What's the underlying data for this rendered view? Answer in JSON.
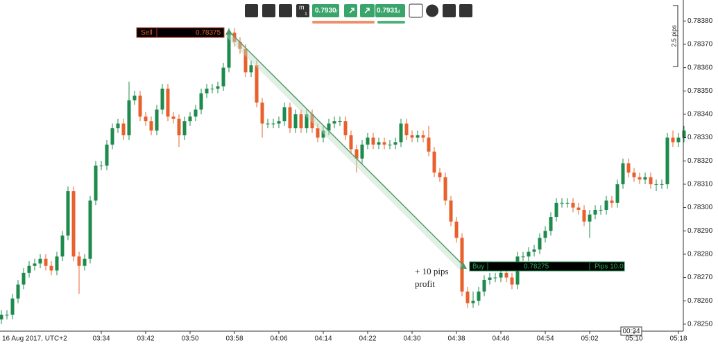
{
  "chart_data": {
    "type": "candlestick",
    "date_label": "16 Aug 2017, UTC+2",
    "categories": [
      null,
      null,
      null,
      null,
      null,
      null,
      null,
      null,
      null,
      null,
      null,
      null,
      null,
      null,
      null,
      null,
      null,
      null,
      "03:34",
      null,
      null,
      null,
      null,
      null,
      null,
      null,
      "03:42",
      null,
      null,
      null,
      null,
      null,
      null,
      null,
      "03:50",
      null,
      null,
      null,
      null,
      null,
      null,
      null,
      "03:58",
      null,
      null,
      null,
      null,
      null,
      null,
      null,
      "04:06",
      null,
      null,
      null,
      null,
      null,
      null,
      null,
      "04:14",
      null,
      null,
      null,
      null,
      null,
      null,
      null,
      "04:22",
      null,
      null,
      null,
      null,
      null,
      null,
      null,
      "04:30",
      null,
      null,
      null,
      null,
      null,
      null,
      null,
      "04:38",
      null,
      null,
      null,
      null,
      null,
      null,
      null,
      "04:46",
      null,
      null,
      null,
      null,
      null,
      null,
      null,
      "04:54",
      null,
      null,
      null,
      null,
      null,
      null,
      null,
      "05:02",
      null,
      null,
      null,
      null,
      null,
      null,
      null,
      "05:10",
      null,
      null,
      null,
      null,
      null,
      null,
      null,
      "05:18",
      null
    ],
    "open": [
      0.78252,
      0.78254,
      0.78254,
      0.78261,
      0.78267,
      0.78272,
      0.78275,
      0.78276,
      0.78278,
      0.78275,
      0.78273,
      0.78279,
      0.78288,
      0.78307,
      0.78279,
      0.78275,
      0.78278,
      0.78303,
      0.78318,
      0.78318,
      0.78327,
      0.78334,
      0.78336,
      0.78331,
      0.78346,
      0.78348,
      0.78339,
      0.78337,
      0.78333,
      0.78342,
      0.78351,
      0.78339,
      0.78338,
      0.78331,
      0.78337,
      0.78339,
      0.78342,
      0.78349,
      0.78351,
      0.78351,
      0.78352,
      0.7836,
      0.78375,
      0.78371,
      0.78368,
      0.78358,
      0.78361,
      0.78345,
      0.78336,
      0.78336,
      0.78336,
      0.78337,
      0.78343,
      0.78334,
      0.7834,
      0.78334,
      0.7834,
      0.78334,
      0.7833,
      0.78333,
      0.78336,
      0.78337,
      0.78337,
      0.78331,
      0.78325,
      0.78321,
      0.78327,
      0.7833,
      0.78327,
      0.78328,
      0.78327,
      0.78327,
      0.78328,
      0.78336,
      0.78331,
      0.7833,
      0.78331,
      0.7833,
      0.78324,
      0.78315,
      0.78313,
      0.78303,
      0.78294,
      0.78287,
      0.78264,
      0.78259,
      0.7826,
      0.78264,
      0.78269,
      0.7827,
      0.7827,
      0.78272,
      0.7827,
      0.78267,
      0.78279,
      0.78279,
      0.78281,
      0.78282,
      0.78287,
      0.7829,
      0.78296,
      0.78302,
      0.78302,
      0.78302,
      0.783,
      0.78299,
      0.78294,
      0.78297,
      0.78299,
      0.78299,
      0.78303,
      0.78302,
      0.7831,
      0.78319,
      0.78315,
      0.78313,
      0.78312,
      0.78313,
      0.7831,
      0.7831,
      0.7831,
      0.7833,
      0.78328,
      0.7833
    ],
    "high": [
      0.78256,
      0.78256,
      0.78263,
      0.78269,
      0.78274,
      0.78277,
      0.78278,
      0.7828,
      0.7828,
      0.78277,
      0.78281,
      0.7829,
      0.78309,
      0.78309,
      0.78281,
      0.7828,
      0.78305,
      0.7832,
      0.7832,
      0.78329,
      0.78336,
      0.78338,
      0.78338,
      0.78354,
      0.7835,
      0.7835,
      0.78341,
      0.78339,
      0.78344,
      0.78353,
      0.78353,
      0.78341,
      0.7834,
      0.78339,
      0.78341,
      0.78344,
      0.78351,
      0.78353,
      0.78353,
      0.78354,
      0.78362,
      0.78377,
      0.78377,
      0.78373,
      0.7837,
      0.78363,
      0.78363,
      0.78347,
      0.78338,
      0.78338,
      0.78339,
      0.78345,
      0.78345,
      0.78342,
      0.78342,
      0.78342,
      0.78342,
      0.78336,
      0.78335,
      0.78338,
      0.78339,
      0.78339,
      0.78339,
      0.78333,
      0.78327,
      0.78329,
      0.78332,
      0.78332,
      0.7833,
      0.7833,
      0.78329,
      0.7833,
      0.78338,
      0.78338,
      0.78333,
      0.78333,
      0.78333,
      0.78335,
      0.78326,
      0.78317,
      0.78315,
      0.78305,
      0.78296,
      0.78289,
      0.78266,
      0.78264,
      0.78266,
      0.78271,
      0.78272,
      0.78272,
      0.78274,
      0.78274,
      0.78272,
      0.78281,
      0.78281,
      0.78283,
      0.78284,
      0.78289,
      0.78292,
      0.78298,
      0.78304,
      0.78304,
      0.78304,
      0.78304,
      0.78302,
      0.78301,
      0.78299,
      0.78301,
      0.78301,
      0.78305,
      0.78305,
      0.78312,
      0.78321,
      0.78321,
      0.78317,
      0.78315,
      0.78315,
      0.78315,
      0.78312,
      0.78312,
      0.78332,
      0.78333,
      0.78332,
      0.78335
    ],
    "low": [
      0.7825,
      0.78252,
      0.78252,
      0.78259,
      0.78265,
      0.7827,
      0.78273,
      0.78274,
      0.78273,
      0.78271,
      0.78271,
      0.78277,
      0.78286,
      0.78277,
      0.78263,
      0.78273,
      0.78276,
      0.78301,
      0.78316,
      0.78316,
      0.78325,
      0.78332,
      0.78329,
      0.78329,
      0.78344,
      0.78337,
      0.78335,
      0.78331,
      0.78331,
      0.7834,
      0.78337,
      0.78336,
      0.78326,
      0.78329,
      0.78335,
      0.78337,
      0.7834,
      0.78347,
      0.78349,
      0.78349,
      0.7835,
      0.78358,
      0.78369,
      0.78366,
      0.78356,
      0.78356,
      0.78343,
      0.7833,
      0.78334,
      0.78334,
      0.78334,
      0.78335,
      0.78332,
      0.78332,
      0.78332,
      0.78332,
      0.78332,
      0.78328,
      0.78328,
      0.78331,
      0.78334,
      0.78335,
      0.78329,
      0.78323,
      0.78315,
      0.78319,
      0.78325,
      0.78325,
      0.78325,
      0.78325,
      0.78325,
      0.78325,
      0.78326,
      0.78329,
      0.78328,
      0.78328,
      0.78328,
      0.78322,
      0.78313,
      0.78311,
      0.78301,
      0.78292,
      0.78285,
      0.78262,
      0.78257,
      0.78257,
      0.78258,
      0.78262,
      0.78267,
      0.78268,
      0.78268,
      0.78268,
      0.78265,
      0.78265,
      0.78277,
      0.78277,
      0.78279,
      0.7828,
      0.78285,
      0.78288,
      0.78294,
      0.783,
      0.783,
      0.78298,
      0.78297,
      0.78292,
      0.78287,
      0.78295,
      0.78297,
      0.78297,
      0.783,
      0.783,
      0.78308,
      0.78313,
      0.78311,
      0.7831,
      0.7831,
      0.78308,
      0.78307,
      0.78308,
      0.78308,
      0.78326,
      0.78326,
      0.78328
    ],
    "close": [
      0.78254,
      0.78254,
      0.78261,
      0.78267,
      0.78272,
      0.78275,
      0.78276,
      0.78278,
      0.78275,
      0.78273,
      0.78279,
      0.78288,
      0.78307,
      0.78279,
      0.78275,
      0.78278,
      0.78303,
      0.78318,
      0.78318,
      0.78327,
      0.78334,
      0.78336,
      0.78331,
      0.78346,
      0.78348,
      0.78339,
      0.78337,
      0.78333,
      0.78342,
      0.78351,
      0.78339,
      0.78338,
      0.78331,
      0.78337,
      0.78339,
      0.78342,
      0.78349,
      0.78351,
      0.78351,
      0.78352,
      0.7836,
      0.78375,
      0.78371,
      0.78368,
      0.78358,
      0.78361,
      0.78345,
      0.78336,
      0.78336,
      0.78336,
      0.78337,
      0.78343,
      0.78334,
      0.7834,
      0.78334,
      0.7834,
      0.78334,
      0.7833,
      0.78333,
      0.78336,
      0.78337,
      0.78337,
      0.78331,
      0.78325,
      0.78321,
      0.78327,
      0.7833,
      0.78327,
      0.78328,
      0.78327,
      0.78327,
      0.78328,
      0.78336,
      0.78331,
      0.7833,
      0.78331,
      0.7833,
      0.78324,
      0.78315,
      0.78313,
      0.78303,
      0.78294,
      0.78287,
      0.78264,
      0.78259,
      0.7826,
      0.78264,
      0.78269,
      0.7827,
      0.7827,
      0.78272,
      0.7827,
      0.78267,
      0.78279,
      0.78279,
      0.78281,
      0.78282,
      0.78287,
      0.7829,
      0.78296,
      0.78302,
      0.78302,
      0.78302,
      0.783,
      0.78299,
      0.78294,
      0.78297,
      0.78299,
      0.78299,
      0.78303,
      0.78302,
      0.7831,
      0.78319,
      0.78315,
      0.78313,
      0.78312,
      0.78313,
      0.7831,
      0.7831,
      0.7831,
      0.7833,
      0.78328,
      0.7833,
      0.78333
    ],
    "up_color": "#1e8a4c",
    "down_color": "#e8602c",
    "ylim": [
      0.78247,
      0.78389
    ],
    "yticks": [
      {
        "value": 0.7825,
        "label": "0.78250"
      },
      {
        "value": 0.7826,
        "label": "0.78260"
      },
      {
        "value": 0.7827,
        "label": "0.78270"
      },
      {
        "value": 0.7828,
        "label": "0.78280"
      },
      {
        "value": 0.7829,
        "label": "0.78290"
      },
      {
        "value": 0.783,
        "label": "0.78300"
      },
      {
        "value": 0.7831,
        "label": "0.78310"
      },
      {
        "value": 0.7832,
        "label": "0.78320"
      },
      {
        "value": 0.7833,
        "label": "0.78330"
      },
      {
        "value": 0.7834,
        "label": "0.78340"
      },
      {
        "value": 0.7835,
        "label": "0.78350"
      },
      {
        "value": 0.7836,
        "label": "0.78360"
      },
      {
        "value": 0.7837,
        "label": "0.78370"
      },
      {
        "value": 0.7838,
        "label": "0.78380"
      }
    ]
  },
  "ui": {
    "timeframe": "m",
    "timeframe_sub": "1",
    "bid_main": "0.7930",
    "bid_pip": "7",
    "ask_main": "0.7931",
    "ask_pip": "4",
    "sell_label": "Sell",
    "sell_price": "0.78375",
    "buy_label": "Buy",
    "buy_price": "0.78275",
    "pips_label": "Pips 10.0",
    "note_line1": "+ 10 pips",
    "note_line2": "profit",
    "range_label": "2.5 pips",
    "countdown": "00:34"
  }
}
